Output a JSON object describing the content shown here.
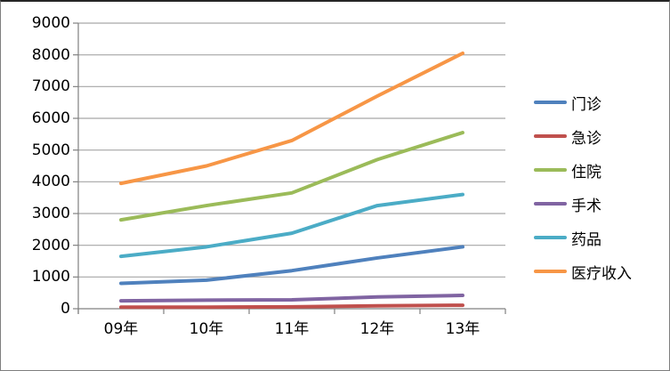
{
  "chart_data": {
    "type": "line",
    "title": "",
    "xlabel": "",
    "ylabel": "",
    "categories": [
      "09年",
      "10年",
      "11年",
      "12年",
      "13年"
    ],
    "series": [
      {
        "id": "outpatient",
        "name": "门诊",
        "color": "#4F81BD",
        "values": [
          800,
          900,
          1200,
          1600,
          1950
        ]
      },
      {
        "id": "emergency",
        "name": "急诊",
        "color": "#C0504D",
        "values": [
          50,
          50,
          60,
          90,
          110
        ]
      },
      {
        "id": "inpatient",
        "name": "住院",
        "color": "#9BBB59",
        "values": [
          2800,
          3250,
          3650,
          4700,
          5550
        ]
      },
      {
        "id": "surgery",
        "name": "手术",
        "color": "#8064A2",
        "values": [
          250,
          270,
          280,
          370,
          420
        ]
      },
      {
        "id": "medicine",
        "name": "药品",
        "color": "#4BACC6",
        "values": [
          1650,
          1950,
          2380,
          3250,
          3600
        ]
      },
      {
        "id": "revenue",
        "name": "医疗收入",
        "color": "#F79646",
        "values": [
          3950,
          4500,
          5300,
          6700,
          8050
        ]
      }
    ],
    "ylim": [
      0,
      9000
    ],
    "ytick_step": 1000,
    "ytick_labels": [
      "0",
      "1000",
      "2000",
      "3000",
      "4000",
      "5000",
      "6000",
      "7000",
      "8000",
      "9000"
    ],
    "grid": true,
    "legend_position": "right",
    "colors": {
      "gridline": "#A6A6A6",
      "axis": "#808080",
      "text": "#000000",
      "background": "#FFFFFF"
    }
  }
}
